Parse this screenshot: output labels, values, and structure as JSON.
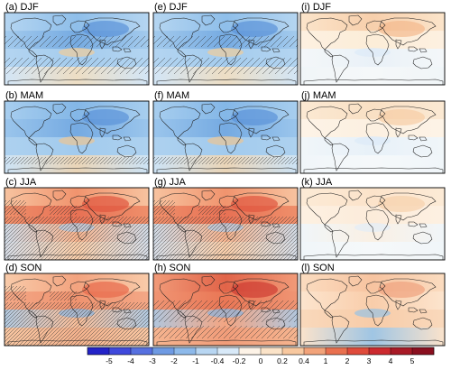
{
  "panels": [
    {
      "id": "a",
      "label": "(a) DJF",
      "season": "DJF",
      "base": "#9ec7ec",
      "zones": [
        [
          "#b9d8f2",
          "#8cbde9"
        ],
        [
          "#a4cbed",
          "#6fa6e0"
        ],
        [
          "#b7d7f2",
          "#a6cdee"
        ],
        [
          "#dcebf8",
          "#fbe2bd"
        ]
      ],
      "hatch": "sparse-south",
      "accent": [
        "#5b93d8",
        "#f5cd95"
      ]
    },
    {
      "id": "e",
      "label": "(e) DJF",
      "season": "DJF",
      "base": "#9ec7ec",
      "zones": [
        [
          "#b9d8f2",
          "#8cbde9"
        ],
        [
          "#a4cbed",
          "#6fa6e0"
        ],
        [
          "#b7d7f2",
          "#a6cdee"
        ],
        [
          "#dcebf8",
          "#fbe2bd"
        ]
      ],
      "hatch": "sparse-south",
      "accent": [
        "#5b93d8",
        "#f5cd95"
      ]
    },
    {
      "id": "i",
      "label": "(i) DJF",
      "season": "DJF",
      "base": "#fdf1e2",
      "zones": [
        [
          "#fbe2c6",
          "#f6c9a2"
        ],
        [
          "#fdf0e0",
          "#fcecd6"
        ],
        [
          "#f2f8fd",
          "#e6f1fb"
        ],
        [
          "#eef6fc",
          "#f4f9fd"
        ]
      ],
      "hatch": "none",
      "accent": [
        "#f3b98d",
        "#dbe9f7"
      ]
    },
    {
      "id": "b",
      "label": "(b) MAM",
      "season": "MAM",
      "base": "#9ec7ec",
      "zones": [
        [
          "#a9cfef",
          "#7fb4e6"
        ],
        [
          "#9ac5ec",
          "#6ea5e0"
        ],
        [
          "#b0d3f0",
          "#a2cbee"
        ],
        [
          "#d5e8f7",
          "#f7d7ae"
        ]
      ],
      "hatch": "south-band",
      "accent": [
        "#5b93d8",
        "#f3c58c"
      ]
    },
    {
      "id": "f",
      "label": "(f) MAM",
      "season": "MAM",
      "base": "#9ec7ec",
      "zones": [
        [
          "#a9cfef",
          "#7fb4e6"
        ],
        [
          "#9ac5ec",
          "#6ea5e0"
        ],
        [
          "#b0d3f0",
          "#a2cbee"
        ],
        [
          "#d5e8f7",
          "#f7d7ae"
        ]
      ],
      "hatch": "south-band",
      "accent": [
        "#5b93d8",
        "#f3c58c"
      ]
    },
    {
      "id": "j",
      "label": "(j) MAM",
      "season": "MAM",
      "base": "#fdf5ea",
      "zones": [
        [
          "#fbe7cf",
          "#f8dcbd"
        ],
        [
          "#fdf3e6",
          "#fcefdf"
        ],
        [
          "#eef6fc",
          "#e4f0fb"
        ],
        [
          "#eef6fc",
          "#f4f9fd"
        ]
      ],
      "hatch": "none",
      "accent": [
        "#f6cda5",
        "#dceaf8"
      ]
    },
    {
      "id": "c",
      "label": "(c) JJA",
      "season": "JJA",
      "base": "#f4a983",
      "zones": [
        [
          "#f8c7a4",
          "#f0906a"
        ],
        [
          "#ee8a66",
          "#e5674c"
        ],
        [
          "#c9e1f5",
          "#f6b691"
        ],
        [
          "#cfe4f6",
          "#f8d3b0"
        ]
      ],
      "hatch": "dense",
      "accent": [
        "#e0563f",
        "#a9cdee"
      ]
    },
    {
      "id": "g",
      "label": "(g) JJA",
      "season": "JJA",
      "base": "#f4a983",
      "zones": [
        [
          "#f8c7a4",
          "#f0906a"
        ],
        [
          "#ee8a66",
          "#e5674c"
        ],
        [
          "#c9e1f5",
          "#f6b691"
        ],
        [
          "#cfe4f6",
          "#f8d3b0"
        ]
      ],
      "hatch": "dense",
      "accent": [
        "#e0563f",
        "#a9cdee"
      ]
    },
    {
      "id": "k",
      "label": "(k) JJA",
      "season": "JJA",
      "base": "#fdf3e6",
      "zones": [
        [
          "#fce9d3",
          "#fbe0c5"
        ],
        [
          "#fdf0e1",
          "#fcead8"
        ],
        [
          "#eef6fc",
          "#f9efe3"
        ],
        [
          "#eef6fc",
          "#f4f9fd"
        ]
      ],
      "hatch": "none",
      "accent": [
        "#f7d2ad",
        "#e1edf9"
      ]
    },
    {
      "id": "d",
      "label": "(d) SON",
      "season": "SON",
      "base": "#f6b48f",
      "zones": [
        [
          "#f9cfae",
          "#f2a07c"
        ],
        [
          "#f3a584",
          "#ee8d6a"
        ],
        [
          "#a6cdee",
          "#f7bf9b"
        ],
        [
          "#f8c9a5",
          "#f3b28d"
        ]
      ],
      "hatch": "dense",
      "accent": [
        "#e8694c",
        "#7fb4e6"
      ]
    },
    {
      "id": "h",
      "label": "(h) SON",
      "season": "SON",
      "base": "#f29c79",
      "zones": [
        [
          "#f19a78",
          "#de5a40"
        ],
        [
          "#ef9372",
          "#e8704f"
        ],
        [
          "#a6cdee",
          "#f4a784"
        ],
        [
          "#f6b893",
          "#f19d7a"
        ]
      ],
      "hatch": "medium",
      "accent": [
        "#cf3d33",
        "#7fb4e6"
      ]
    },
    {
      "id": "l",
      "label": "(l) SON",
      "season": "SON",
      "base": "#fbdcc0",
      "zones": [
        [
          "#fbdcc0",
          "#f6bf9a"
        ],
        [
          "#fde6d0",
          "#f8caa6"
        ],
        [
          "#f9d8bb",
          "#f7c9a4"
        ],
        [
          "#fbe4cd",
          "#8fc1ea"
        ]
      ],
      "hatch": "none",
      "accent": [
        "#f0a37f",
        "#8fc1ea"
      ]
    }
  ],
  "colorbar": {
    "labels": [
      "-5",
      "-4",
      "-3",
      "-2",
      "-1",
      "-0.4",
      "-0.2",
      "0",
      "0.2",
      "0.4",
      "1",
      "2",
      "3",
      "4",
      "5"
    ],
    "colors": [
      "#2323c8",
      "#3f49dc",
      "#5670e0",
      "#6e9ae3",
      "#8db9ea",
      "#b8d6f2",
      "#d8e9f8",
      "#fdf3e7",
      "#fbe3c8",
      "#f8c89f",
      "#f2a37a",
      "#e9704f",
      "#df4b3b",
      "#cc2a2f",
      "#a81a26",
      "#8a0f1f"
    ]
  },
  "colors": {
    "coastline": "#222222",
    "frame": "#000000",
    "hatch": "#333333"
  }
}
